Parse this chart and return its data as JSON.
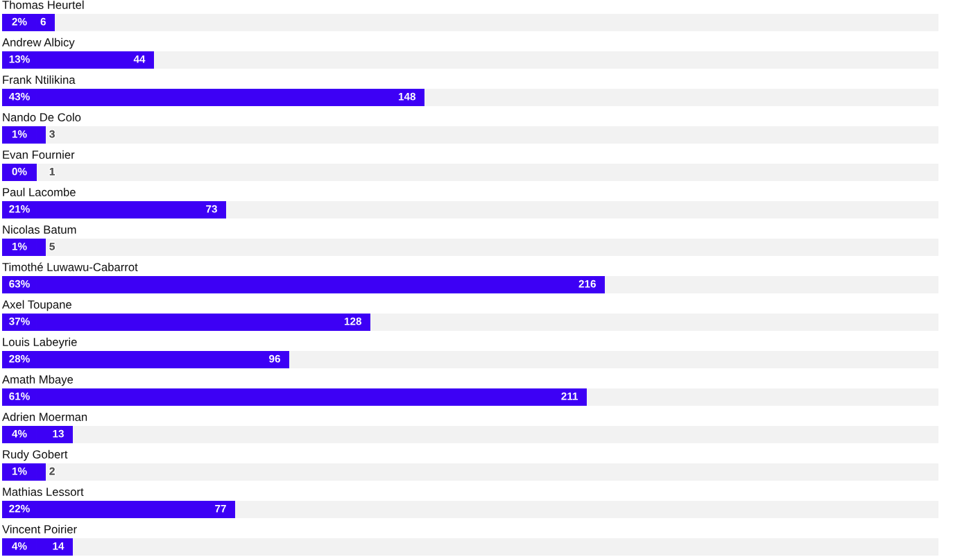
{
  "chart_data": {
    "type": "bar",
    "orientation": "horizontal",
    "categories": [
      "Thomas Heurtel",
      "Andrew Albicy",
      "Frank Ntilikina",
      "Nando De Colo",
      "Evan Fournier",
      "Paul Lacombe",
      "Nicolas Batum",
      "Timothé Luwawu-Cabarrot",
      "Axel Toupane",
      "Louis Labeyrie",
      "Amath Mbaye",
      "Adrien Moerman",
      "Rudy Gobert",
      "Mathias Lessort",
      "Vincent Poirier"
    ],
    "values": [
      2,
      13,
      43,
      1,
      0,
      21,
      1,
      63,
      37,
      28,
      61,
      4,
      1,
      22,
      4
    ],
    "value_labels": [
      "2%",
      "13%",
      "43%",
      "1%",
      "0%",
      "21%",
      "1%",
      "63%",
      "37%",
      "28%",
      "61%",
      "4%",
      "1%",
      "22%",
      "4%"
    ],
    "color": "#3d00f5",
    "tick_labels": "y",
    "annotations": [
      {
        "text": "6",
        "x": 2,
        "y": "Thomas Heurtel"
      },
      {
        "text": "44",
        "x": 13,
        "y": "Andrew Albicy"
      },
      {
        "text": "148",
        "x": 43,
        "y": "Frank Ntilikina"
      },
      {
        "text": "3",
        "x": 1,
        "y": "Nando De Colo"
      },
      {
        "text": "1",
        "x": 0,
        "y": "Evan Fournier"
      },
      {
        "text": "73",
        "x": 21,
        "y": "Paul Lacombe"
      },
      {
        "text": "5",
        "x": 1,
        "y": "Nicolas Batum"
      },
      {
        "text": "216",
        "x": 63,
        "y": "Timothé Luwawu-Cabarrot"
      },
      {
        "text": "128",
        "x": 37,
        "y": "Axel Toupane"
      },
      {
        "text": "96",
        "x": 28,
        "y": "Louis Labeyrie"
      },
      {
        "text": "211",
        "x": 61,
        "y": "Amath Mbaye"
      },
      {
        "text": "13",
        "x": 4,
        "y": "Adrien Moerman"
      },
      {
        "text": "2",
        "x": 1,
        "y": "Rudy Gobert"
      },
      {
        "text": "77",
        "x": 22,
        "y": "Mathias Lessort"
      },
      {
        "text": "14",
        "x": 4,
        "y": "Vincent Poirier"
      }
    ]
  }
}
